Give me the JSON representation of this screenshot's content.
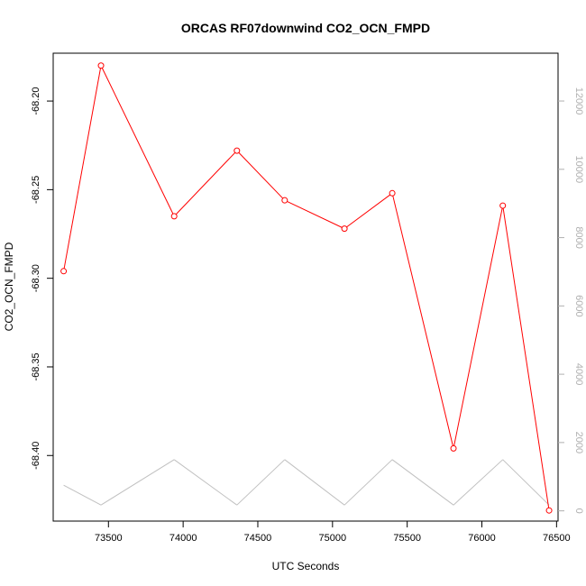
{
  "chart_data": {
    "type": "line",
    "title": "ORCAS RF07downwind CO2_OCN_FMPD",
    "xlabel": "UTC Seconds",
    "ylabel": "CO2_OCN_FMPD",
    "xlim": [
      73130,
      76510
    ],
    "ylim": [
      -68.437,
      -68.173
    ],
    "y2lim": [
      -300,
      13400
    ],
    "x_ticks": [
      73500,
      74000,
      74500,
      75000,
      75500,
      76000,
      76500
    ],
    "y_ticks": [
      -68.2,
      -68.25,
      -68.3,
      -68.35,
      -68.4
    ],
    "y_tick_labels": [
      "-68.20",
      "-68.25",
      "-68.30",
      "-68.35",
      "-68.40"
    ],
    "y2_ticks": [
      0,
      2000,
      4000,
      6000,
      8000,
      10000,
      12000
    ],
    "x": [
      73200,
      73450,
      73940,
      74360,
      74680,
      75080,
      75400,
      75810,
      76140,
      76450
    ],
    "series": [
      {
        "values": [
          -68.296,
          -68.18,
          -68.265,
          -68.228,
          -68.256,
          -68.272,
          -68.252,
          -68.396,
          -68.259,
          -68.431
        ],
        "color": "#ff0000",
        "axis": "left",
        "markers": "open-circle"
      },
      {
        "values": [
          750,
          170,
          1500,
          170,
          1500,
          170,
          1500,
          170,
          1500,
          170
        ],
        "color": "#c0c0c0",
        "axis": "right",
        "markers": "none"
      }
    ],
    "grid": false,
    "legend": "none"
  }
}
